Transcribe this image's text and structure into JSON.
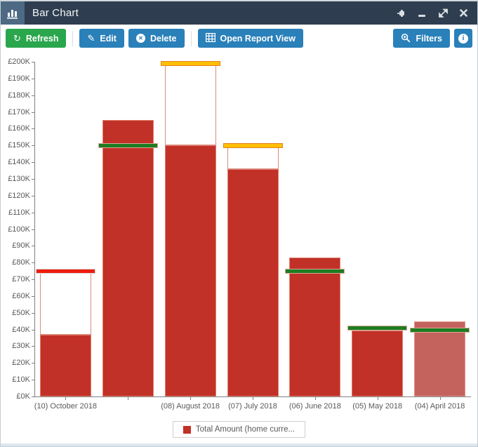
{
  "window": {
    "title": "Bar Chart",
    "titlebar_icons": [
      "bar-chart-icon",
      "pin-icon",
      "minimize-icon",
      "expand-icon",
      "close-icon"
    ]
  },
  "toolbar": {
    "refresh": "Refresh",
    "edit": "Edit",
    "delete": "Delete",
    "open_report_view": "Open Report View",
    "filters": "Filters",
    "info": "i"
  },
  "colors": {
    "titlebar_bg": "#2e3e50",
    "titlebar_icon_bg": "#4d6984",
    "accent_green": "#2aa64c",
    "accent_blue": "#2a80b9",
    "bar_red": "#c13127",
    "bar_red_light": "#c4635d",
    "target_red": "#ee1c0c",
    "target_green": "#1d7d20",
    "target_orange": "#ffc003",
    "axis_gray": "#808080",
    "label_gray": "#595959"
  },
  "chart_data": {
    "type": "bar",
    "title": "",
    "currency": "£",
    "y_axis": {
      "min": 0,
      "max": 200,
      "step": 10,
      "prefix": "£",
      "suffix": "K"
    },
    "categories": [
      "(10) October 2018",
      "",
      "(08) August 2018",
      "(07) July 2018",
      "(06) June 2018",
      "(05) May 2018",
      "(04) April 2018"
    ],
    "series": [
      {
        "name": "Total Amount (home curre...",
        "values": [
          37,
          165,
          150,
          136,
          83,
          40,
          45
        ]
      }
    ],
    "bar_fills": [
      "#c13127",
      "#c13127",
      "#c13127",
      "#c13127",
      "#c13127",
      "#c13127",
      "#c4635d"
    ],
    "targets": {
      "values": [
        75,
        150,
        199,
        150,
        75,
        41,
        40
      ],
      "colors": [
        "red",
        "green",
        "orange",
        "orange",
        "green",
        "green",
        "green"
      ]
    },
    "target_color_map": {
      "red": {
        "fill": "#ee1c0c",
        "border": "#d9d9d9"
      },
      "green": {
        "fill": "#1d7d20",
        "border": "#dba69b"
      },
      "orange": {
        "fill": "#ffc003",
        "border": "#e2801e"
      }
    },
    "legend": {
      "label": "Total Amount (home curre...",
      "swatch_color": "#c13127",
      "position": "bottom"
    },
    "grid": false,
    "ylim": [
      0,
      200
    ]
  }
}
